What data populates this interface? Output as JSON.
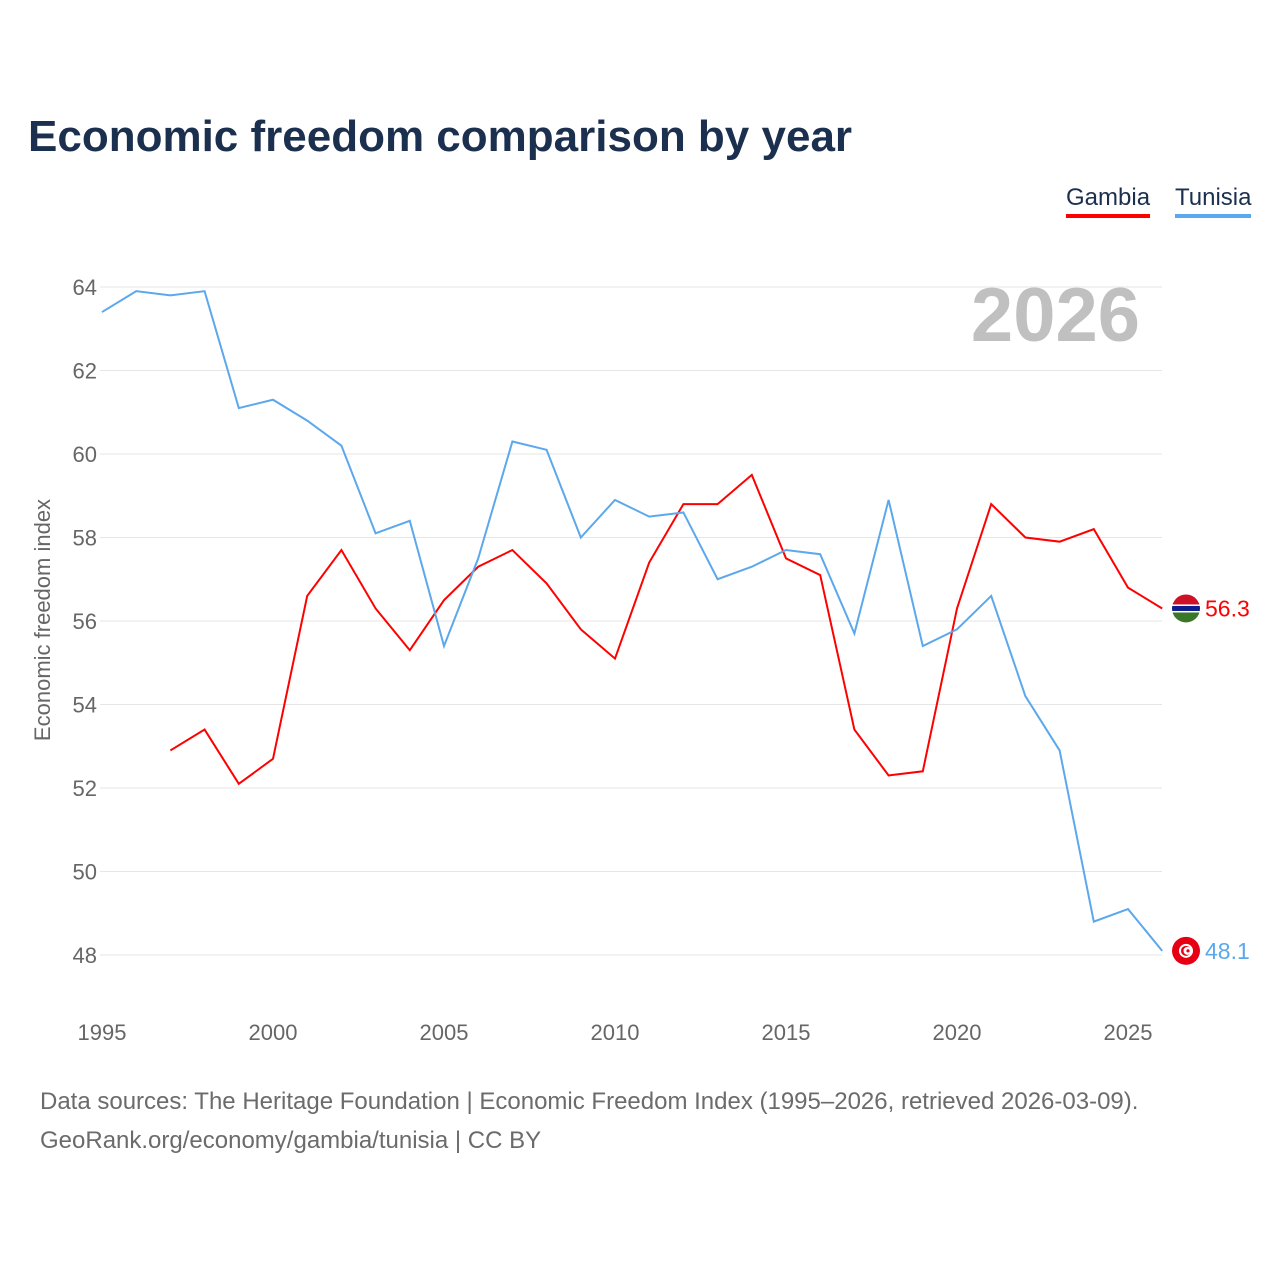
{
  "title": "Economic freedom comparison by year",
  "source_line1": "Data sources: The Heritage Foundation | Economic Freedom Index (1995–2026, retrieved 2026-03-09).",
  "source_line2": "GeoRank.org/economy/gambia/tunisia | CC BY",
  "chart_data": {
    "type": "line",
    "title": "Economic freedom comparison by year",
    "xlabel": "",
    "ylabel": "Economic freedom index",
    "year_label": "2026",
    "xlim": [
      1995,
      2026
    ],
    "ylim": [
      47,
      65
    ],
    "x_ticks": [
      1995,
      2000,
      2005,
      2010,
      2015,
      2020,
      2025
    ],
    "y_ticks": [
      48,
      50,
      52,
      54,
      56,
      58,
      60,
      62,
      64
    ],
    "grid": true,
    "legend": "top-right",
    "series": [
      {
        "name": "Gambia",
        "color": "#ff0000",
        "flag": "gambia-flag",
        "end_label": "56.3",
        "start": 1997,
        "values": [
          52.9,
          53.4,
          52.1,
          52.7,
          56.6,
          57.7,
          56.3,
          55.3,
          56.5,
          57.3,
          57.7,
          56.9,
          55.8,
          55.1,
          57.4,
          58.8,
          58.8,
          59.5,
          57.5,
          57.1,
          53.4,
          52.3,
          52.4,
          56.3,
          58.8,
          58.0,
          57.9,
          58.2,
          56.8,
          56.3
        ]
      },
      {
        "name": "Tunisia",
        "color": "#5ca8ec",
        "flag": "tunisia-flag",
        "end_label": "48.1",
        "start": 1995,
        "values": [
          63.4,
          63.9,
          63.8,
          63.9,
          61.1,
          61.3,
          60.8,
          60.2,
          58.1,
          58.4,
          55.4,
          57.5,
          60.3,
          60.1,
          58.0,
          58.9,
          58.5,
          58.6,
          57.0,
          57.3,
          57.7,
          57.6,
          55.7,
          58.9,
          55.4,
          55.8,
          56.6,
          54.2,
          52.9,
          48.8,
          49.1,
          48.1
        ]
      }
    ]
  }
}
